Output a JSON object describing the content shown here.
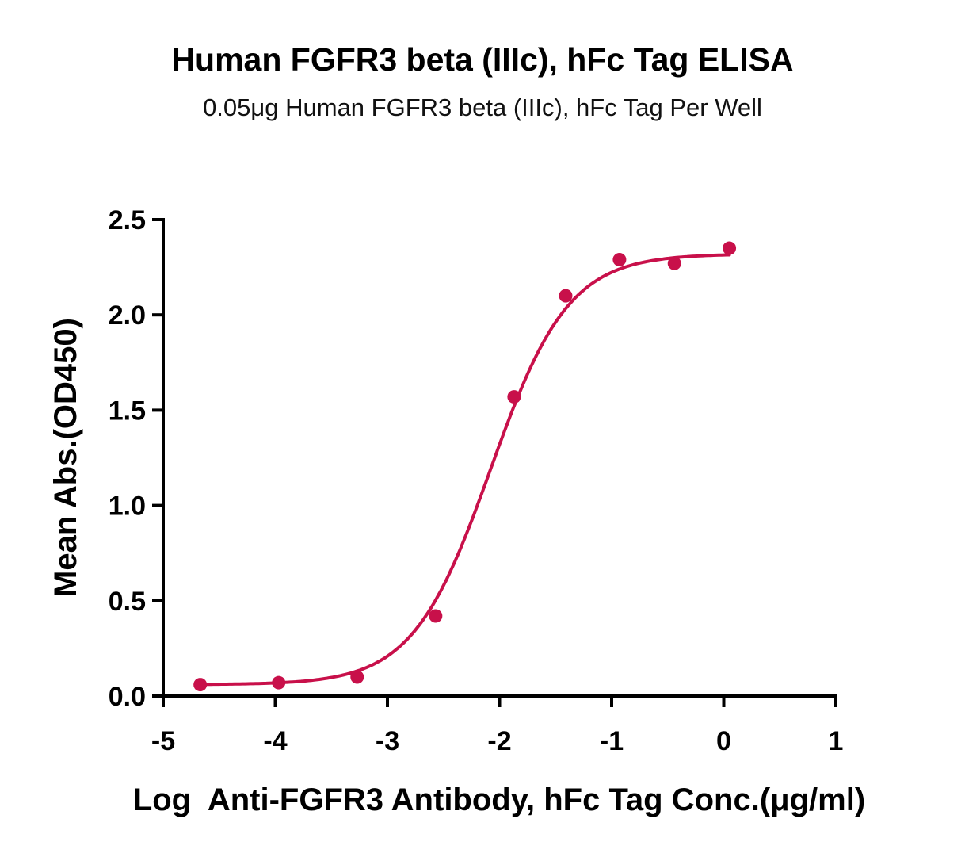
{
  "chart_data": {
    "type": "scatter",
    "title": "Human FGFR3 beta (IIIc), hFc Tag ELISA",
    "subtitle": "0.05μg Human FGFR3 beta (IIIc), hFc Tag Per Well",
    "xlabel": "Log  Anti-FGFR3 Antibody, hFc Tag Conc.(μg/ml)",
    "ylabel": "Mean Abs.(OD450)",
    "xlim": [
      -5,
      1
    ],
    "ylim": [
      0,
      2.5
    ],
    "x_ticks": [
      "-5",
      "-4",
      "-3",
      "-2",
      "-1",
      "0",
      "1"
    ],
    "y_ticks": [
      "0.0",
      "0.5",
      "1.0",
      "1.5",
      "2.0",
      "2.5"
    ],
    "grid": false,
    "legend": "none",
    "series": [
      {
        "color": "#C8104A",
        "fit": "four-parameter logistic",
        "x": [
          -4.67,
          -3.97,
          -3.27,
          -2.57,
          -1.87,
          -1.41,
          -0.93,
          -0.44,
          0.05
        ],
        "y": [
          0.06,
          0.07,
          0.1,
          0.42,
          1.57,
          2.1,
          2.29,
          2.27,
          2.35
        ]
      }
    ],
    "curve_fit": {
      "bottom": 0.06,
      "top": 2.32,
      "logEC50": -2.08,
      "hill": 1.25
    }
  }
}
